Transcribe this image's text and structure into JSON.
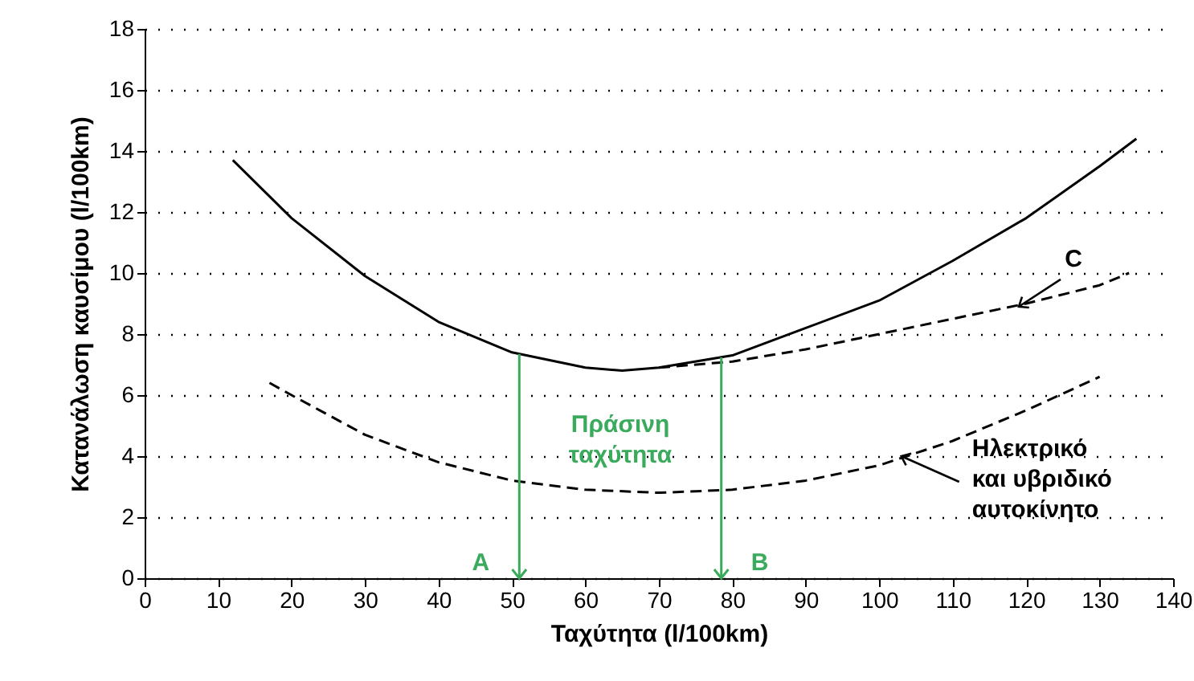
{
  "chart_data": {
    "type": "line",
    "xlabel": "Ταχύτητα (l/100km)",
    "ylabel": "Κατανάλωση καυσίμου (l/100km)",
    "xlim": [
      0,
      140
    ],
    "xticks": [
      0,
      10,
      20,
      30,
      40,
      50,
      60,
      70,
      80,
      90,
      100,
      110,
      120,
      130,
      140
    ],
    "ylim": [
      0,
      18
    ],
    "yticks": [
      0,
      2,
      4,
      6,
      8,
      10,
      12,
      14,
      16,
      18
    ],
    "grid": "y",
    "series": [
      {
        "color": "#000000",
        "line_style": "solid",
        "x": [
          12,
          20,
          30,
          40,
          50,
          60,
          65,
          70,
          80,
          90,
          100,
          110,
          120,
          130,
          135
        ],
        "values": [
          13.7,
          11.8,
          9.9,
          8.4,
          7.4,
          6.9,
          6.8,
          6.9,
          7.3,
          8.2,
          9.1,
          10.4,
          11.8,
          13.5,
          14.4
        ]
      },
      {
        "color": "#000000",
        "line_style": "dashed",
        "x": [
          70,
          80,
          90,
          100,
          110,
          120,
          130,
          134
        ],
        "values": [
          6.9,
          7.1,
          7.5,
          8.0,
          8.5,
          9.0,
          9.6,
          10.0
        ]
      },
      {
        "color": "#000000",
        "line_style": "dashed",
        "x": [
          17,
          20,
          30,
          40,
          50,
          60,
          70,
          80,
          90,
          100,
          110,
          120,
          130
        ],
        "values": [
          6.4,
          6.0,
          4.7,
          3.8,
          3.2,
          2.9,
          2.8,
          2.9,
          3.2,
          3.7,
          4.5,
          5.5,
          6.6
        ]
      }
    ],
    "ref_lines": [
      {
        "axis": "x",
        "value": 51,
        "color": "#3aaa5c"
      },
      {
        "axis": "x",
        "value": 78.5,
        "color": "#3aaa5c"
      }
    ],
    "annotations": [
      {
        "text": "A",
        "x": 51,
        "y": 0
      },
      {
        "text": "B",
        "x": 78.5,
        "y": 0
      },
      "Πράσινη\nταχύτητα",
      {
        "text": "C",
        "x": 119,
        "y": 8.9
      },
      {
        "text": "Ηλεκτρικό\nκαι υβριδικό\nαυτοκίνητο",
        "x": 103,
        "y": 4.0
      }
    ]
  }
}
